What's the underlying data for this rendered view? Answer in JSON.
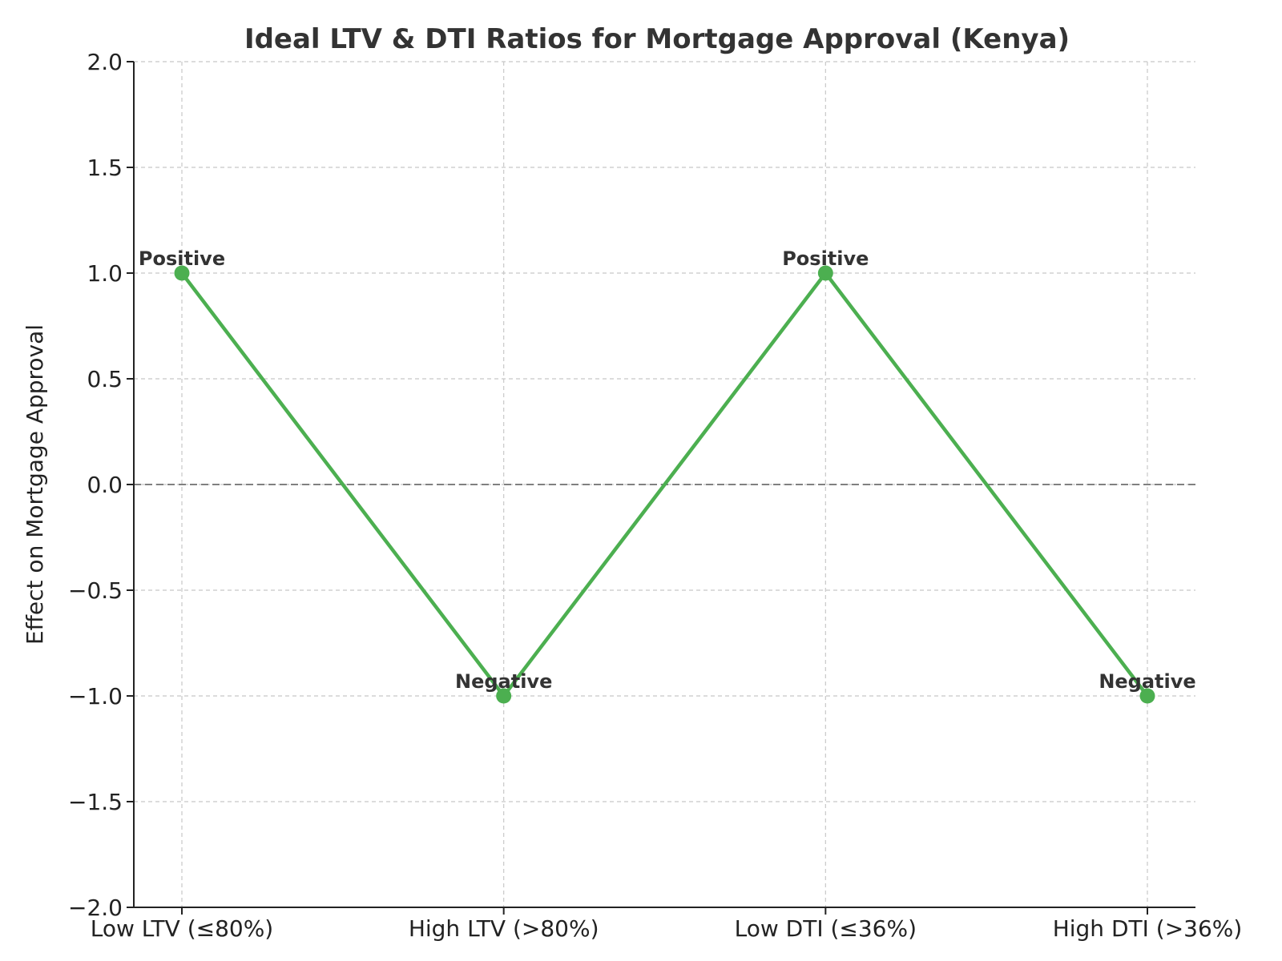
{
  "chart_data": {
    "type": "line",
    "title": "Ideal LTV & DTI Ratios for Mortgage Approval (Kenya)",
    "xlabel": "",
    "ylabel": "Effect on Mortgage Approval",
    "categories": [
      "Low LTV (≤80%)",
      "High LTV (>80%)",
      "Low DTI (≤36%)",
      "High DTI (>36%)"
    ],
    "series": [
      {
        "values": [
          1,
          -1,
          1,
          -1
        ],
        "labels": [
          "Positive",
          "Negative",
          "Positive",
          "Negative"
        ],
        "color": "#4caf50"
      }
    ],
    "ylim": [
      -2.0,
      2.0
    ],
    "yticks": [
      2.0,
      1.5,
      1.0,
      0.5,
      0.0,
      -0.5,
      -1.0,
      -1.5,
      -2.0
    ],
    "ytick_labels": [
      "2.0",
      "1.5",
      "1.0",
      "0.5",
      "0.0",
      "−0.5",
      "−1.0",
      "−1.5",
      "−2.0"
    ],
    "reference_line": {
      "y": 0,
      "color": "#808080",
      "style": "dashed"
    },
    "grid": true,
    "grid_color": "#c8c8c8"
  }
}
